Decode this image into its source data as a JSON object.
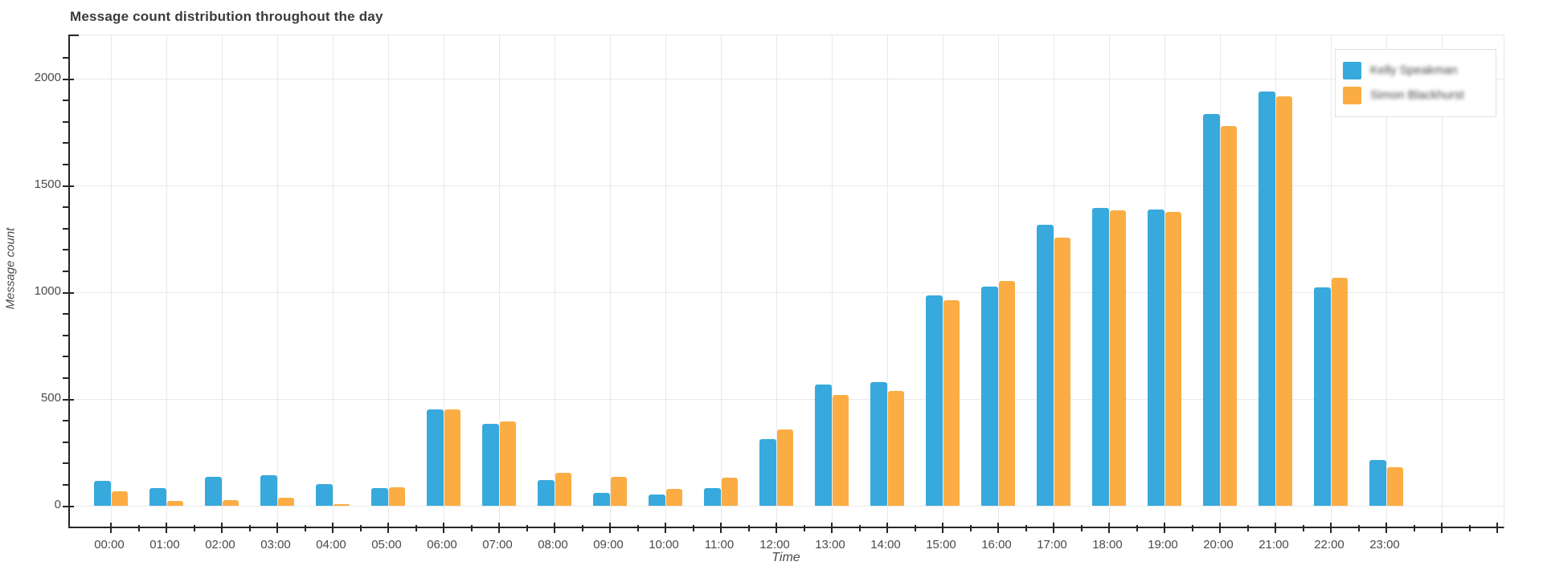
{
  "chart_data": {
    "type": "bar",
    "title": "Message count distribution throughout the day",
    "xlabel": "Time",
    "ylabel": "Message count",
    "ylim": [
      0,
      2200
    ],
    "yticks": [
      0,
      500,
      1000,
      1500,
      2000
    ],
    "grid": true,
    "legend_position": "top-right",
    "legend_text_blurred": true,
    "categories": [
      "00:00",
      "01:00",
      "02:00",
      "03:00",
      "04:00",
      "05:00",
      "06:00",
      "07:00",
      "08:00",
      "09:00",
      "10:00",
      "11:00",
      "12:00",
      "13:00",
      "14:00",
      "15:00",
      "16:00",
      "17:00",
      "18:00",
      "19:00",
      "20:00",
      "21:00",
      "22:00",
      "23:00"
    ],
    "series": [
      {
        "name": "Kelly Speakman",
        "color": "#38a9dc",
        "values": [
          115,
          82,
          134,
          142,
          100,
          82,
          450,
          383,
          120,
          60,
          52,
          82,
          312,
          566,
          580,
          984,
          1028,
          1317,
          1396,
          1389,
          1836,
          1938,
          1024,
          215
        ]
      },
      {
        "name": "Simon Blackhurst",
        "color": "#fbad43",
        "values": [
          68,
          22,
          26,
          37,
          8,
          85,
          452,
          394,
          154,
          136,
          79,
          131,
          357,
          520,
          537,
          964,
          1051,
          1256,
          1384,
          1376,
          1780,
          1918,
          1069,
          181
        ]
      }
    ]
  }
}
